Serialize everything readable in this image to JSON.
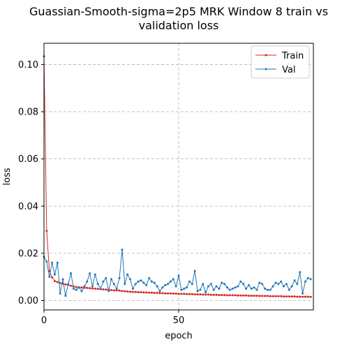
{
  "chart_data": {
    "type": "line",
    "title_line1": "Guassian-Smooth-sigma=2p5 MRK Window 8 train vs",
    "title_line2": "validation loss",
    "xlabel": "epoch",
    "ylabel": "loss",
    "xlim": [
      0,
      100
    ],
    "ylim": [
      -0.004,
      0.109
    ],
    "xticks": [
      0,
      50
    ],
    "yticks": [
      0.0,
      0.02,
      0.04,
      0.06,
      0.08,
      0.1
    ],
    "ytick_labels": [
      "0.00",
      "0.02",
      "0.04",
      "0.06",
      "0.08",
      "0.10"
    ],
    "grid": true,
    "legend_position": "upper right",
    "series": [
      {
        "name": "Train",
        "color": "#d62728",
        "x": [
          0,
          1,
          2,
          3,
          4,
          5,
          6,
          7,
          8,
          9,
          10,
          11,
          12,
          13,
          14,
          15,
          16,
          17,
          18,
          19,
          20,
          21,
          22,
          23,
          24,
          25,
          26,
          27,
          28,
          29,
          30,
          31,
          32,
          33,
          34,
          35,
          36,
          37,
          38,
          39,
          40,
          41,
          42,
          43,
          44,
          45,
          46,
          47,
          48,
          49,
          50,
          51,
          52,
          53,
          54,
          55,
          56,
          57,
          58,
          59,
          60,
          61,
          62,
          63,
          64,
          65,
          66,
          67,
          68,
          69,
          70,
          71,
          72,
          73,
          74,
          75,
          76,
          77,
          78,
          79,
          80,
          81,
          82,
          83,
          84,
          85,
          86,
          87,
          88,
          89,
          90,
          91,
          92,
          93,
          94,
          95,
          96,
          97,
          98,
          99
        ],
        "y": [
          0.1035,
          0.0295,
          0.0125,
          0.0098,
          0.0082,
          0.0078,
          0.0074,
          0.0071,
          0.0068,
          0.0066,
          0.0062,
          0.0059,
          0.0057,
          0.0056,
          0.0055,
          0.0054,
          0.0053,
          0.0052,
          0.0051,
          0.005,
          0.0049,
          0.0048,
          0.0047,
          0.0046,
          0.0045,
          0.0044,
          0.0043,
          0.0043,
          0.0042,
          0.004,
          0.0039,
          0.0038,
          0.0037,
          0.0036,
          0.0036,
          0.0035,
          0.0035,
          0.0034,
          0.0034,
          0.0033,
          0.0033,
          0.0032,
          0.0032,
          0.0031,
          0.0031,
          0.003,
          0.003,
          0.003,
          0.0029,
          0.0029,
          0.0028,
          0.0028,
          0.0028,
          0.0027,
          0.0027,
          0.0027,
          0.0026,
          0.0026,
          0.0026,
          0.0025,
          0.0025,
          0.0025,
          0.0024,
          0.0024,
          0.0024,
          0.0023,
          0.0023,
          0.0023,
          0.0022,
          0.0022,
          0.0022,
          0.0022,
          0.0021,
          0.0021,
          0.0021,
          0.0021,
          0.002,
          0.002,
          0.002,
          0.002,
          0.0019,
          0.0019,
          0.0019,
          0.0019,
          0.0018,
          0.0018,
          0.0018,
          0.0018,
          0.0018,
          0.0017,
          0.0017,
          0.0017,
          0.0017,
          0.0017,
          0.0016,
          0.0016,
          0.0016,
          0.0016,
          0.0016,
          0.0015
        ]
      },
      {
        "name": "Val",
        "color": "#1f77b4",
        "x": [
          0,
          1,
          2,
          3,
          4,
          5,
          6,
          7,
          8,
          9,
          10,
          11,
          12,
          13,
          14,
          15,
          16,
          17,
          18,
          19,
          20,
          21,
          22,
          23,
          24,
          25,
          26,
          27,
          28,
          29,
          30,
          31,
          32,
          33,
          34,
          35,
          36,
          37,
          38,
          39,
          40,
          41,
          42,
          43,
          44,
          45,
          46,
          47,
          48,
          49,
          50,
          51,
          52,
          53,
          54,
          55,
          56,
          57,
          58,
          59,
          60,
          61,
          62,
          63,
          64,
          65,
          66,
          67,
          68,
          69,
          70,
          71,
          72,
          73,
          74,
          75,
          76,
          77,
          78,
          79,
          80,
          81,
          82,
          83,
          84,
          85,
          86,
          87,
          88,
          89,
          90,
          91,
          92,
          93,
          94,
          95,
          96,
          97,
          98,
          99
        ],
        "y": [
          0.0185,
          0.0165,
          0.01,
          0.016,
          0.011,
          0.016,
          0.003,
          0.009,
          0.002,
          0.007,
          0.0115,
          0.005,
          0.0045,
          0.0055,
          0.004,
          0.006,
          0.008,
          0.0115,
          0.006,
          0.011,
          0.007,
          0.005,
          0.008,
          0.0095,
          0.004,
          0.009,
          0.007,
          0.005,
          0.0095,
          0.0215,
          0.007,
          0.011,
          0.009,
          0.005,
          0.007,
          0.008,
          0.0085,
          0.0075,
          0.0065,
          0.0095,
          0.008,
          0.0075,
          0.006,
          0.004,
          0.0055,
          0.0065,
          0.007,
          0.008,
          0.009,
          0.006,
          0.0105,
          0.0045,
          0.005,
          0.0055,
          0.008,
          0.007,
          0.0125,
          0.004,
          0.0045,
          0.007,
          0.0035,
          0.006,
          0.007,
          0.0045,
          0.006,
          0.005,
          0.0075,
          0.007,
          0.0055,
          0.0045,
          0.005,
          0.0055,
          0.006,
          0.008,
          0.007,
          0.005,
          0.0065,
          0.005,
          0.0055,
          0.0045,
          0.0075,
          0.007,
          0.005,
          0.0045,
          0.0045,
          0.006,
          0.0075,
          0.007,
          0.008,
          0.006,
          0.007,
          0.0045,
          0.006,
          0.0085,
          0.007,
          0.012,
          0.003,
          0.008,
          0.0095,
          0.009
        ]
      }
    ]
  }
}
